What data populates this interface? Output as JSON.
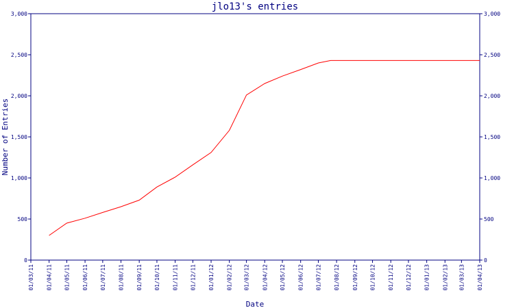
{
  "chart_data": {
    "type": "line",
    "title": "jlo13's entries",
    "xlabel": "Date",
    "ylabel": "Number of Entries",
    "ylim": [
      0,
      3000
    ],
    "yticks": [
      "0",
      "500",
      "1,000",
      "1,500",
      "2,000",
      "2,500",
      "3,000"
    ],
    "yticks_values": [
      0,
      500,
      1000,
      1500,
      2000,
      2500,
      3000
    ],
    "xticks": [
      "01/03/11",
      "01/04/11",
      "01/05/11",
      "01/06/11",
      "01/07/11",
      "01/08/11",
      "01/09/11",
      "01/10/11",
      "01/11/11",
      "01/12/11",
      "01/01/12",
      "01/02/12",
      "01/03/12",
      "01/04/12",
      "01/05/12",
      "01/06/12",
      "01/07/12",
      "01/08/12",
      "01/09/12",
      "01/10/12",
      "01/11/12",
      "01/12/12",
      "01/01/13",
      "01/02/13",
      "01/03/13",
      "01/04/13"
    ],
    "grid": false,
    "series": [
      {
        "color": "#ff0000",
        "x": [
          "2011-04-01",
          "2011-05-01",
          "2011-06-01",
          "2011-07-01",
          "2011-08-01",
          "2011-09-01",
          "2011-10-01",
          "2011-11-01",
          "2011-12-01",
          "2012-01-01",
          "2012-02-01",
          "2012-03-01",
          "2012-04-01",
          "2012-05-01",
          "2012-06-01",
          "2012-07-01",
          "2012-07-22",
          "2013-04-01"
        ],
        "values": [
          300,
          450,
          510,
          580,
          650,
          730,
          890,
          1010,
          1160,
          1310,
          1580,
          2010,
          2150,
          2240,
          2320,
          2400,
          2430,
          2430
        ]
      }
    ]
  }
}
